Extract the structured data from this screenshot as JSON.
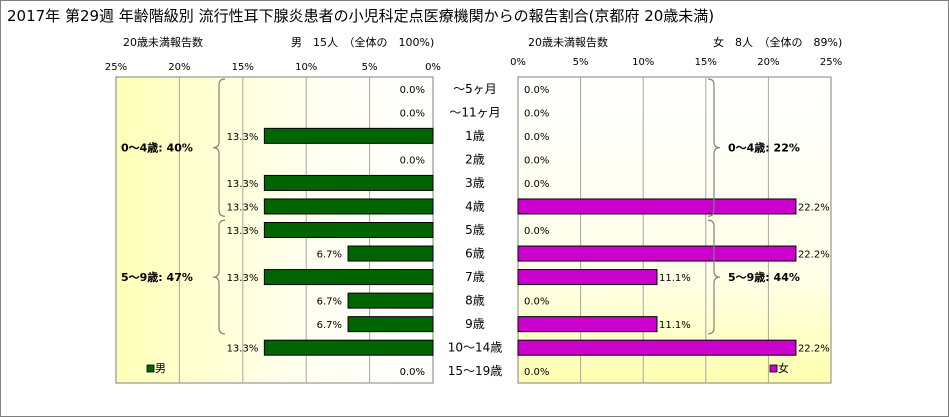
{
  "chart_data": {
    "type": "bar",
    "title": "2017年 第29週 年齢階級別 流行性耳下腺炎患者の小児科定点医療機関からの報告割合(京都府 20歳未満)",
    "categories": [
      "～5ヶ月",
      "～11ヶ月",
      "1歳",
      "2歳",
      "3歳",
      "4歳",
      "5歳",
      "6歳",
      "7歳",
      "8歳",
      "9歳",
      "10～14歳",
      "15～19歳"
    ],
    "axis_ticks_left": [
      "25%",
      "20%",
      "15%",
      "10%",
      "5%",
      "0%"
    ],
    "axis_ticks_right": [
      "0%",
      "5%",
      "10%",
      "15%",
      "20%",
      "25%"
    ],
    "xlim": [
      0,
      25
    ],
    "grid": true,
    "panels": [
      {
        "name": "男",
        "header_left": "20歳未満報告数",
        "header_right": "男　15人　（全体の　100%)",
        "color": "#006400",
        "values": [
          0.0,
          0.0,
          13.3,
          0.0,
          13.3,
          13.3,
          13.3,
          6.7,
          13.3,
          6.7,
          6.7,
          13.3,
          0.0
        ],
        "labels": [
          "0.0%",
          "0.0%",
          "13.3%",
          "0.0%",
          "13.3%",
          "13.3%",
          "13.3%",
          "6.7%",
          "13.3%",
          "6.7%",
          "6.7%",
          "13.3%",
          "0.0%"
        ],
        "groups": [
          {
            "label": "0～4歳: 40%",
            "from": 0,
            "to": 5
          },
          {
            "label": "5～9歳: 47%",
            "from": 6,
            "to": 10
          }
        ]
      },
      {
        "name": "女",
        "header_left": "20歳未満報告数",
        "header_right": "女　8人　（全体の　89%)",
        "color": "#cc00cc",
        "values": [
          0.0,
          0.0,
          0.0,
          0.0,
          0.0,
          22.2,
          0.0,
          22.2,
          11.1,
          0.0,
          11.1,
          22.2,
          0.0
        ],
        "labels": [
          "0.0%",
          "0.0%",
          "0.0%",
          "0.0%",
          "0.0%",
          "22.2%",
          "0.0%",
          "22.2%",
          "11.1%",
          "0.0%",
          "11.1%",
          "22.2%",
          "0.0%"
        ],
        "groups": [
          {
            "label": "0～4歳: 22%",
            "from": 0,
            "to": 5
          },
          {
            "label": "5～9歳: 44%",
            "from": 6,
            "to": 10
          }
        ]
      }
    ]
  }
}
